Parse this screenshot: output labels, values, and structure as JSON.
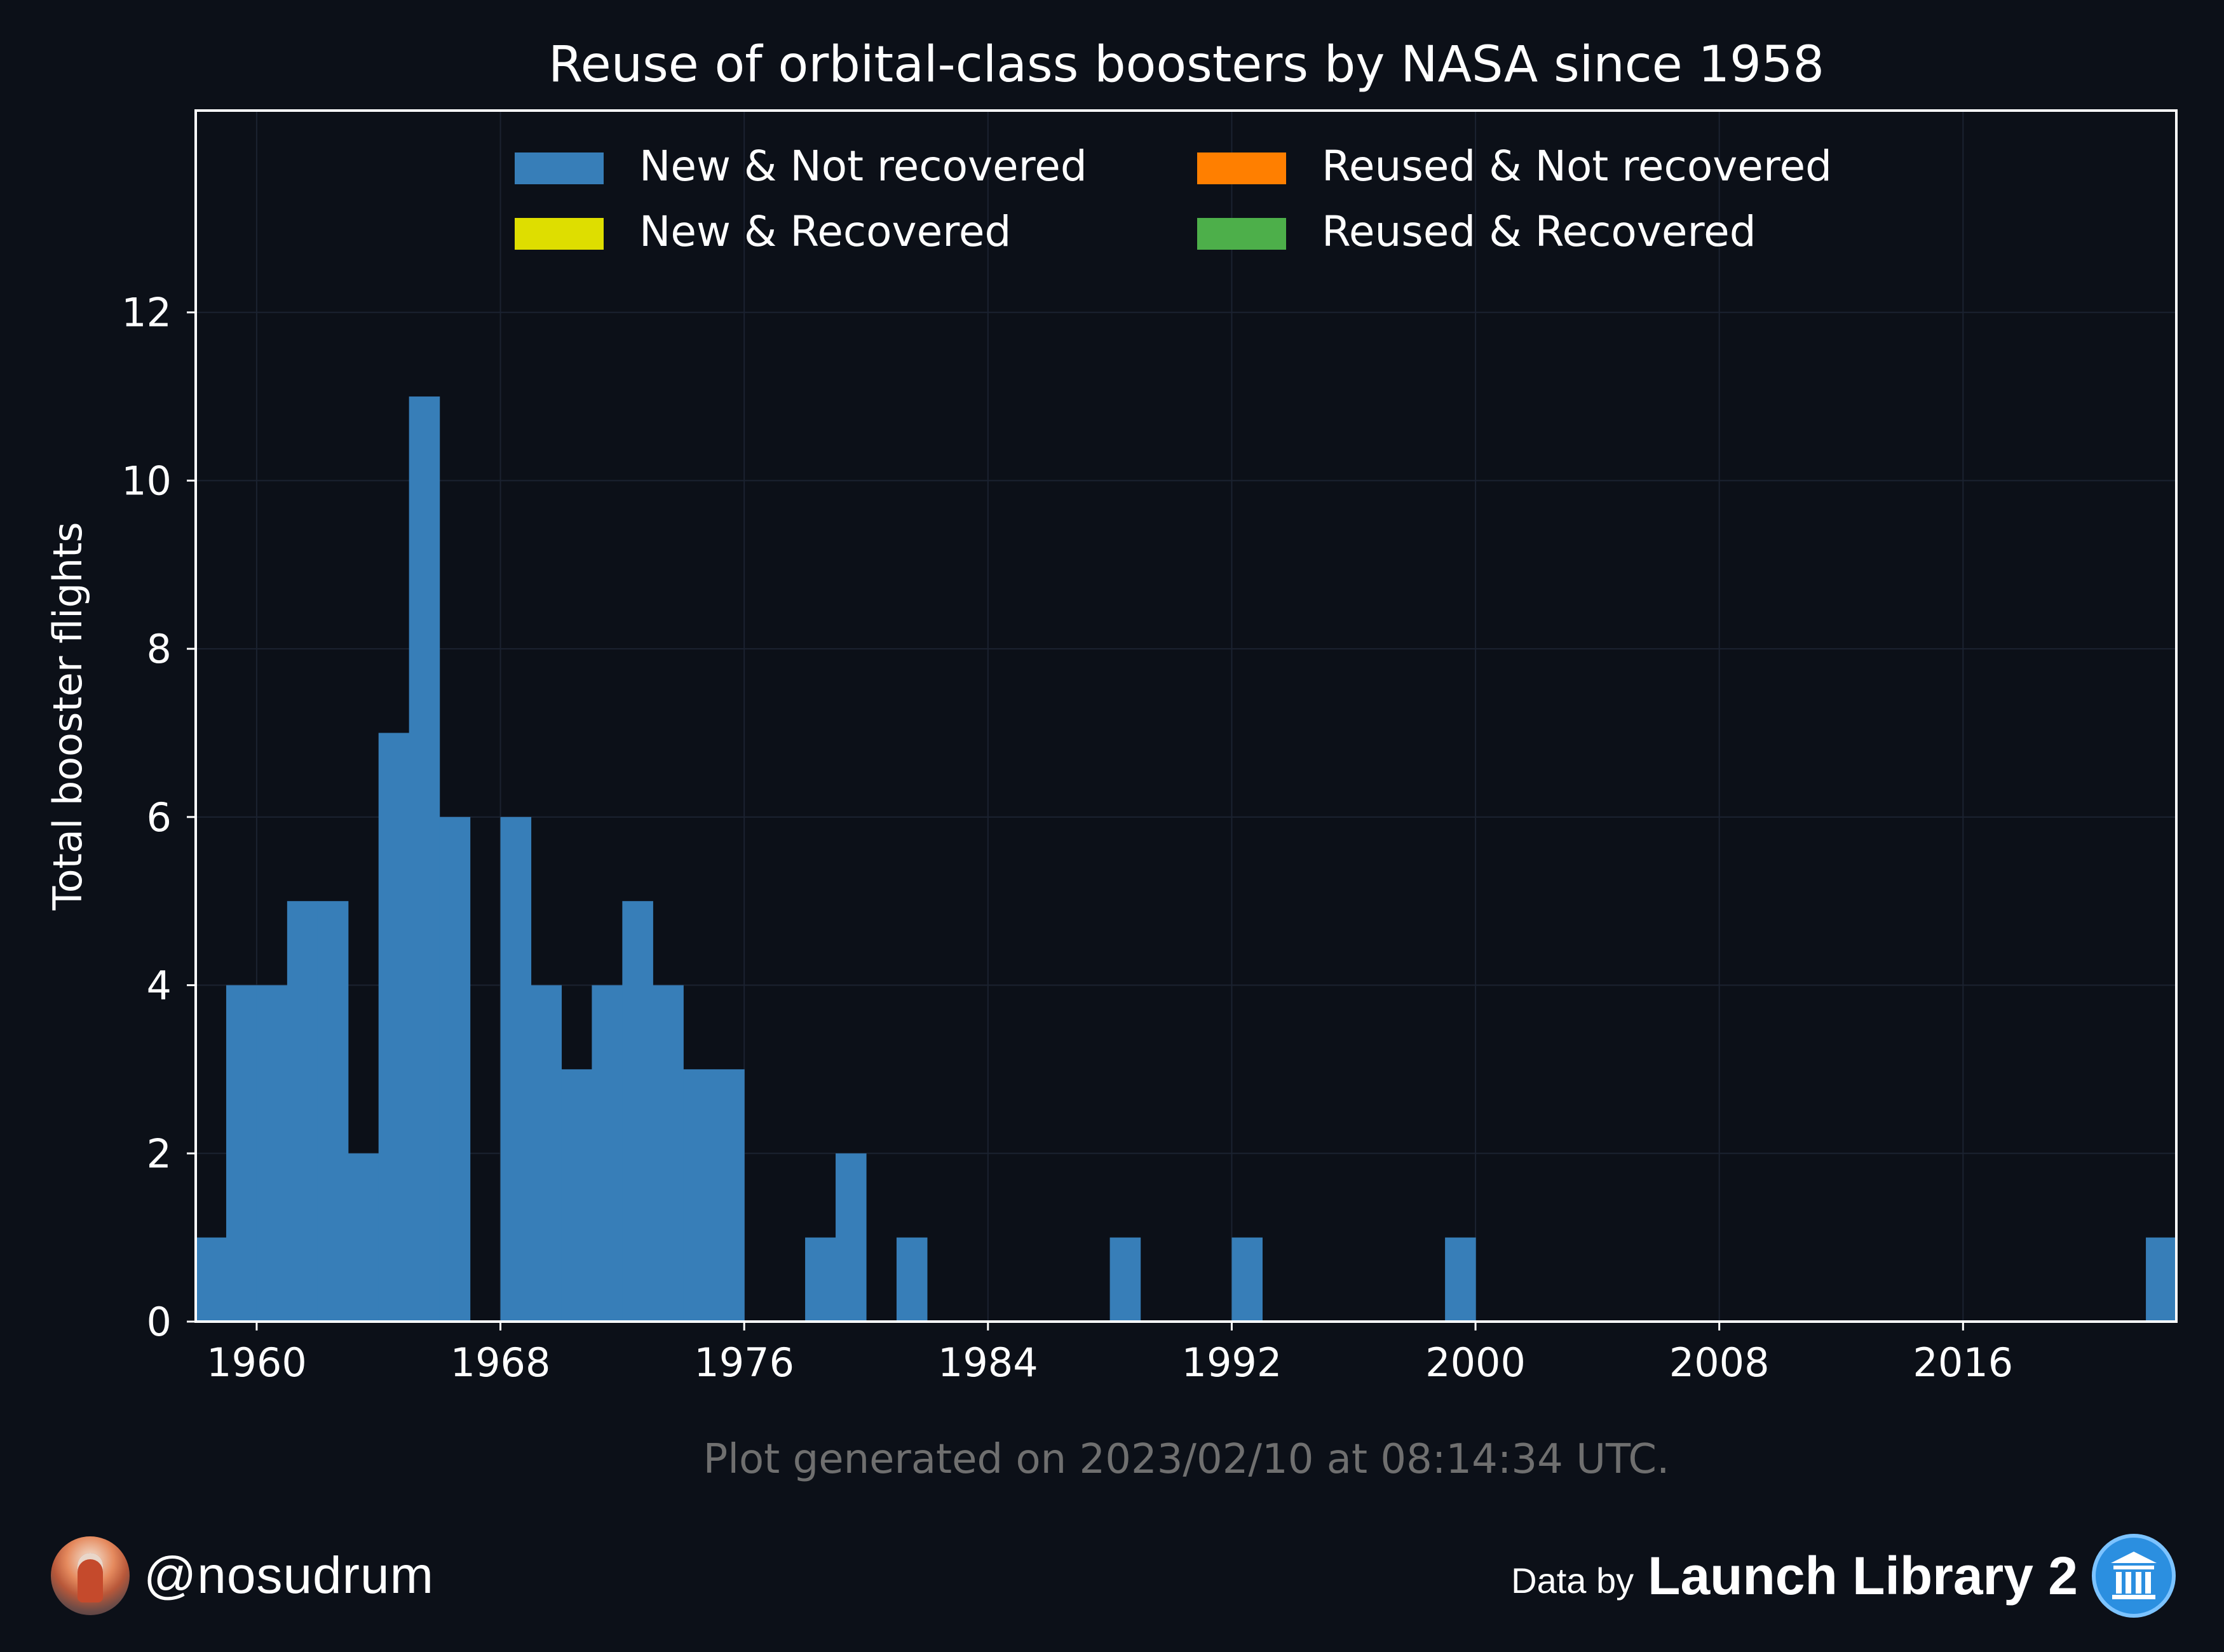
{
  "chart_data": {
    "type": "bar",
    "title": "Reuse of orbital-class boosters by NASA since 1958",
    "ylabel": "Total booster flights",
    "xlabel": "",
    "xlim": [
      1958,
      2023
    ],
    "ylim": [
      0,
      14.4
    ],
    "x_ticks": [
      "1960",
      "1968",
      "1976",
      "1984",
      "1992",
      "2000",
      "2008",
      "2016"
    ],
    "x_tick_values": [
      1960,
      1968,
      1976,
      1984,
      1992,
      2000,
      2008,
      2016
    ],
    "y_ticks": [
      "0",
      "2",
      "4",
      "6",
      "8",
      "10",
      "12"
    ],
    "y_tick_values": [
      0,
      2,
      4,
      6,
      8,
      10,
      12
    ],
    "grid": true,
    "legend_position": "top-center",
    "series": [
      {
        "name": "New & Not recovered",
        "color": "#377eb8",
        "years": [
          1958,
          1959,
          1960,
          1961,
          1962,
          1963,
          1964,
          1965,
          1966,
          1967,
          1968,
          1969,
          1970,
          1971,
          1972,
          1973,
          1974,
          1975,
          1976,
          1977,
          1978,
          1979,
          1980,
          1981,
          1982,
          1983,
          1984,
          1985,
          1986,
          1987,
          1988,
          1989,
          1990,
          1991,
          1992,
          1993,
          1994,
          1995,
          1996,
          1997,
          1998,
          1999,
          2000,
          2001,
          2002,
          2003,
          2004,
          2005,
          2006,
          2007,
          2008,
          2009,
          2010,
          2011,
          2012,
          2013,
          2014,
          2015,
          2016,
          2017,
          2018,
          2019,
          2020,
          2021,
          2022
        ],
        "values": [
          1,
          4,
          4,
          5,
          5,
          2,
          7,
          11,
          6,
          0,
          6,
          4,
          3,
          4,
          5,
          4,
          3,
          3,
          0,
          0,
          1,
          2,
          0,
          1,
          0,
          0,
          0,
          0,
          0,
          0,
          1,
          0,
          0,
          0,
          1,
          0,
          0,
          0,
          0,
          0,
          0,
          1,
          0,
          0,
          0,
          0,
          0,
          0,
          0,
          0,
          0,
          0,
          0,
          0,
          0,
          0,
          0,
          0,
          0,
          0,
          0,
          0,
          0,
          0,
          1
        ]
      },
      {
        "name": "New & Recovered",
        "color": "#dede00",
        "values": []
      },
      {
        "name": "Reused & Not recovered",
        "color": "#ff7f00",
        "values": []
      },
      {
        "name": "Reused & Recovered",
        "color": "#4daf4a",
        "values": []
      }
    ],
    "annotation": "Plot generated on 2023/02/10 at 08:14:34 UTC."
  },
  "footer": {
    "handle": "@nosudrum",
    "data_by": "Data by",
    "brand": "Launch Library 2"
  },
  "icons": {
    "avatar": "astronaut-avatar",
    "brand_logo": "library-columns-icon"
  },
  "colors": {
    "background": "#0c1018",
    "foreground": "#ffffff",
    "annotation": "#6f6f6f",
    "grid": "#1b2230"
  }
}
